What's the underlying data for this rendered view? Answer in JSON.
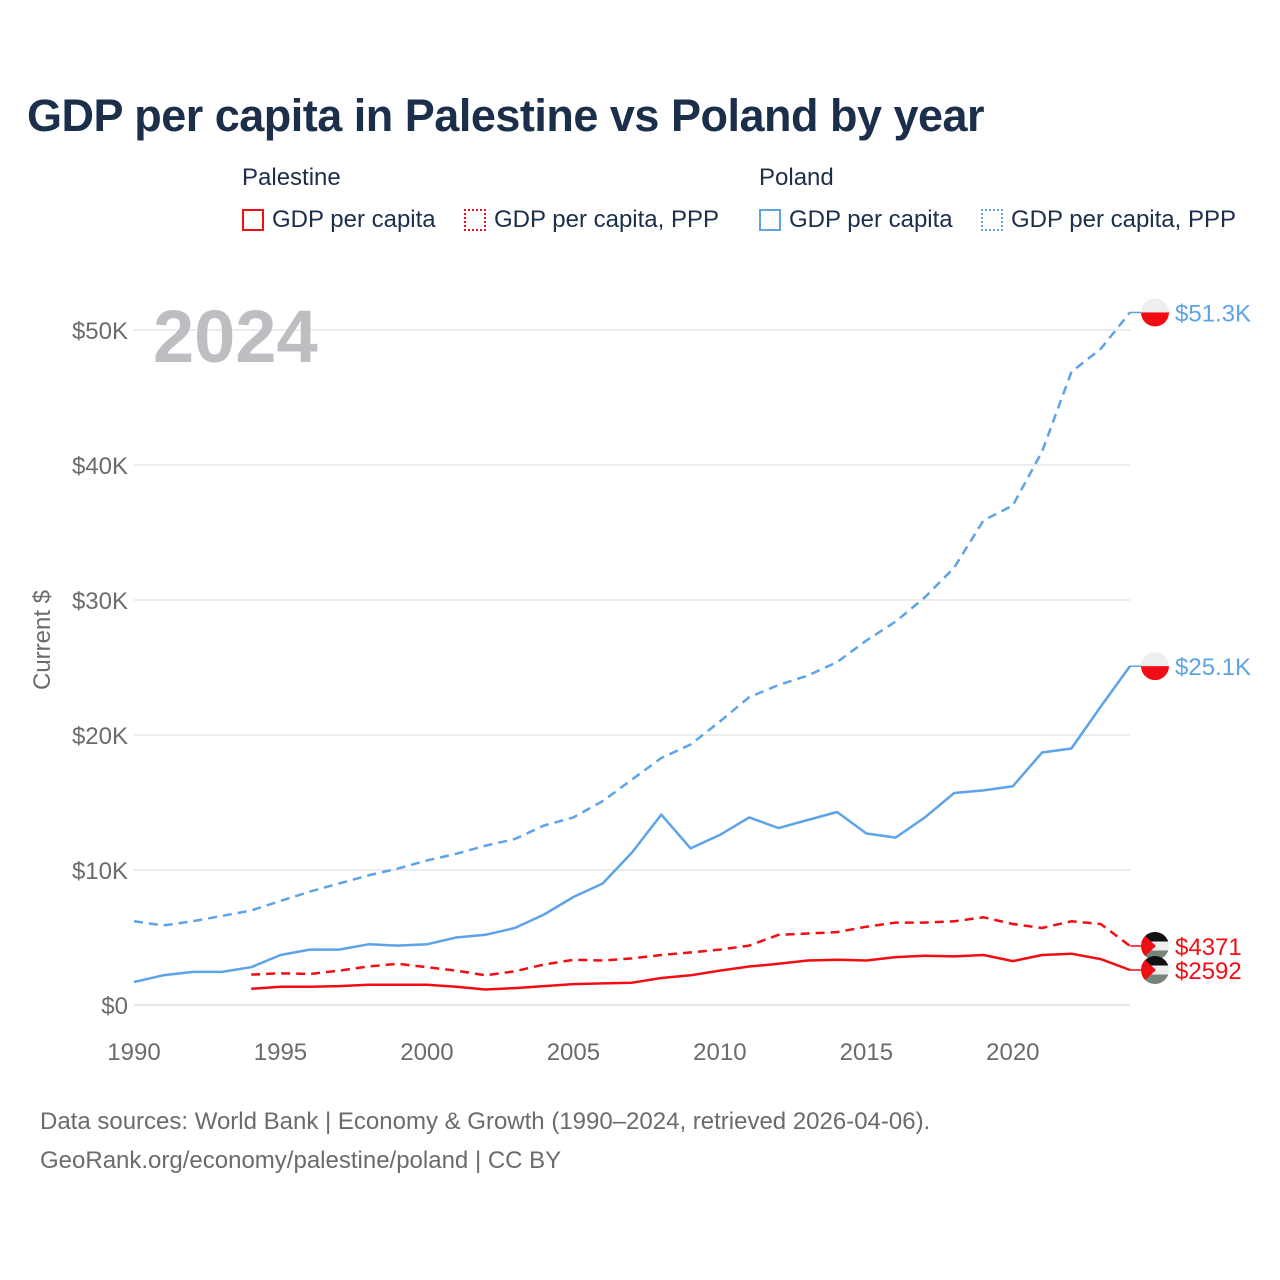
{
  "title": "GDP per capita in Palestine vs Poland by year",
  "legend": {
    "groups": [
      {
        "name": "Palestine",
        "color": "#f20d14",
        "items": [
          "GDP per capita",
          "GDP per capita, PPP"
        ]
      },
      {
        "name": "Poland",
        "color": "#5da3e8",
        "items": [
          "GDP per capita",
          "GDP per capita, PPP"
        ]
      }
    ]
  },
  "year_label": "2024",
  "footer": {
    "line1": "Data sources: World Bank | Economy & Growth (1990–2024, retrieved 2026-04-06).",
    "line2": "GeoRank.org/economy/palestine/poland | CC BY"
  },
  "chart_data": {
    "type": "line",
    "title": "GDP per capita in Palestine vs Poland by year",
    "xlabel": "",
    "ylabel": "Current $",
    "xlim": [
      1990,
      2024
    ],
    "ylim": [
      0,
      50000
    ],
    "x_ticks": [
      1990,
      1995,
      2000,
      2005,
      2010,
      2015,
      2020
    ],
    "x_tick_labels": [
      "1990",
      "1995",
      "2000",
      "2005",
      "2010",
      "2015",
      "2020"
    ],
    "y_ticks": [
      0,
      10000,
      20000,
      30000,
      40000,
      50000
    ],
    "y_tick_labels": [
      "$0",
      "$10K",
      "$20K",
      "$30K",
      "$40K",
      "$50K"
    ],
    "grid": true,
    "series": [
      {
        "name": "Poland GDP per capita, PPP",
        "color": "#5da3e8",
        "dashed": true,
        "start": 1990,
        "end_label": "$51.3K",
        "values": [
          6200,
          5900,
          6200,
          6600,
          7000,
          7700,
          8400,
          9000,
          9600,
          10100,
          10700,
          11200,
          11800,
          12300,
          13300,
          13900,
          15100,
          16700,
          18300,
          19300,
          21000,
          22800,
          23700,
          24400,
          25400,
          27000,
          28400,
          30200,
          32400,
          35900,
          37000,
          41000,
          46900,
          48600,
          51300
        ]
      },
      {
        "name": "Poland GDP per capita",
        "color": "#5da3e8",
        "dashed": false,
        "start": 1990,
        "end_label": "$25.1K",
        "values": [
          1700,
          2200,
          2450,
          2450,
          2800,
          3700,
          4100,
          4100,
          4500,
          4400,
          4500,
          5000,
          5200,
          5700,
          6700,
          8000,
          9000,
          11300,
          14100,
          11600,
          12600,
          13900,
          13100,
          13700,
          14300,
          12700,
          12400,
          13900,
          15700,
          15900,
          16200,
          18700,
          19000,
          22100,
          25100
        ]
      },
      {
        "name": "Palestine GDP per capita, PPP",
        "color": "#f20d14",
        "dashed": true,
        "start": 1994,
        "end_label": "$4371",
        "values": [
          2250,
          2350,
          2300,
          2550,
          2850,
          3050,
          2800,
          2550,
          2200,
          2500,
          3000,
          3350,
          3300,
          3450,
          3700,
          3900,
          4100,
          4400,
          5200,
          5300,
          5400,
          5800,
          6100,
          6100,
          6200,
          6500,
          6000,
          5700,
          6200,
          6000,
          4371
        ]
      },
      {
        "name": "Palestine GDP per capita",
        "color": "#f20d14",
        "dashed": false,
        "start": 1994,
        "end_label": "$2592",
        "values": [
          1200,
          1350,
          1350,
          1400,
          1500,
          1500,
          1500,
          1350,
          1150,
          1250,
          1400,
          1550,
          1600,
          1650,
          2000,
          2200,
          2550,
          2850,
          3050,
          3300,
          3350,
          3300,
          3550,
          3650,
          3600,
          3700,
          3250,
          3700,
          3800,
          3400,
          2592
        ]
      }
    ]
  }
}
